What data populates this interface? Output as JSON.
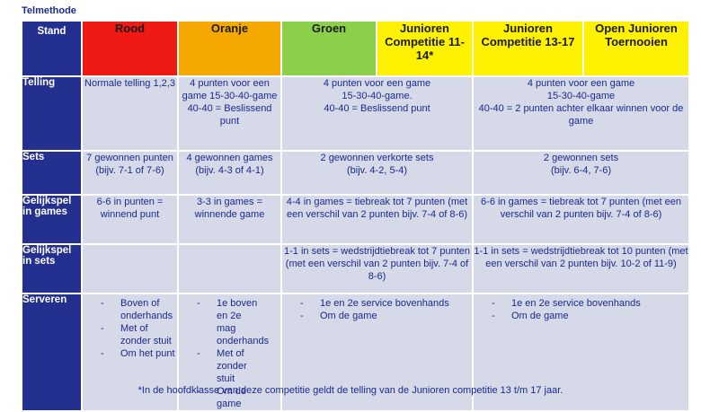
{
  "title": "Telmethode",
  "header": {
    "stand": "Stand",
    "rood": "Rood",
    "oranje": "Oranje",
    "groen": "Groen",
    "junior1114": "Junioren Competitie 11-14*",
    "junior1317": "Junioren Competitie 13-17",
    "open": "Open Junioren Toernooien"
  },
  "colors": {
    "header_bg": "#23308f",
    "rood": "#f01a14",
    "oranje": "#f5a900",
    "groen": "#8ccf4b",
    "geel": "#fff200",
    "cell_bg": "#d5d9e8"
  },
  "rows": {
    "telling": {
      "label": "Telling",
      "rood": "Normale telling 1,2,3",
      "oranje": "4 punten voor een game 15-30-40-game 40-40 = Beslissend punt",
      "mid_l1": "4 punten voor een game",
      "mid_l2": "15-30-40-game.",
      "mid_l3": "40-40 = Beslissend punt",
      "right_l1": "4 punten voor een game",
      "right_l2": "15-30-40-game",
      "right_l3": "40-40 = 2 punten achter elkaar winnen voor de game"
    },
    "sets": {
      "label": "Sets",
      "rood": "7 gewonnen punten (bijv. 7-1 of 7-6)",
      "oranje": "4 gewonnen games (bijv. 4-3 of 4-1)",
      "mid": "2 gewonnen verkorte sets (bijv. 4-2, 5-4)",
      "right": "2 gewonnen sets (bijv. 6-4, 7-6)"
    },
    "gelijk_games": {
      "label": "Gelijkspel in games",
      "rood": "6-6 in punten = winnend punt",
      "oranje": "3-3 in games = winnende game",
      "mid": "4-4 in games = tiebreak tot 7 punten (met een verschil van 2 punten bijv. 7-4 of 8-6)",
      "right": "6-6 in games = tiebreak tot 7 punten (met een verschil van 2 punten bijv. 7-4 of 8-6)"
    },
    "gelijk_sets": {
      "label": "Gelijkspel in sets",
      "mid": "1-1 in sets = wedstrijdtiebreak tot 7 punten (met een verschil van 2 punten bijv. 7-4 of 8-6)",
      "right": "1-1 in sets = wedstrijdtiebreak tot 10 punten (met een verschil van 2 punten bijv. 10-2 of 11-9)"
    },
    "serveren": {
      "label": "Serveren",
      "rood": [
        "Boven of onderhands",
        "Met of zonder stuit",
        "Om het punt"
      ],
      "oranje": [
        "1e boven en 2e mag onderhands",
        "Met of zonder stuit",
        "Om de game"
      ],
      "mid": [
        "1e en 2e service bovenhands",
        "Om de game"
      ],
      "right": [
        "1e en 2e service bovenhands",
        "Om de game"
      ]
    }
  },
  "bullet": "-",
  "footnote": "*In de hoofdklasse van deze competitie geldt de telling van de Junioren competitie 13 t/m 17 jaar."
}
